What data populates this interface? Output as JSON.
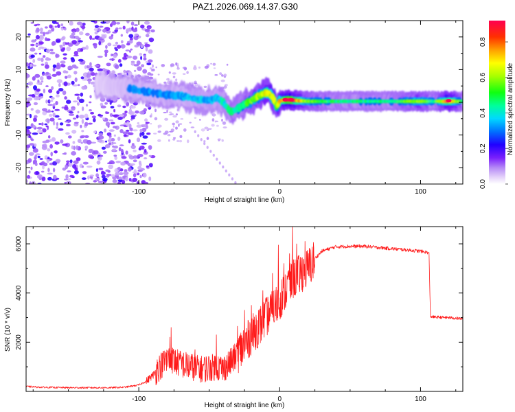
{
  "title": "PAZ1.2026.069.14.37.G30",
  "chart_data": [
    {
      "type": "heatmap",
      "name": "spectrogram",
      "xlabel": "Height of straight line (km)",
      "ylabel": "Frequency (Hz)",
      "xlim": [
        -180,
        130
      ],
      "ylim": [
        -25,
        25
      ],
      "xticks": [
        -100,
        0,
        100
      ],
      "yticks": [
        -20,
        -10,
        0,
        10,
        20
      ],
      "colorbar": {
        "label": "Normalized spectral amplitude",
        "range": [
          0,
          0.92
        ],
        "ticks": [
          0.0,
          0.2,
          0.4,
          0.6,
          0.8
        ],
        "colors": [
          "#ffffff",
          "#d8b8f8",
          "#9a50f8",
          "#7000ff",
          "#0000ff",
          "#0098ff",
          "#00f0ff",
          "#00ff80",
          "#30ff00",
          "#b8ff00",
          "#ffff00",
          "#ffb000",
          "#ff4000",
          "#ff0050"
        ]
      },
      "ridge": {
        "x": [
          -130,
          -120,
          -110,
          -100,
          -90,
          -80,
          -70,
          -60,
          -50,
          -45,
          -40,
          -35,
          -30,
          -25,
          -20,
          -15,
          -12,
          -8,
          -5,
          -2,
          0,
          5,
          10,
          20,
          40,
          60,
          80,
          100,
          110,
          120,
          130
        ],
        "y": [
          5.5,
          5.0,
          4.3,
          3.6,
          3.0,
          2.2,
          2.0,
          1.0,
          0.5,
          1.5,
          0,
          -3,
          -2,
          -0.5,
          0.5,
          2,
          2.5,
          3,
          1.5,
          -1.5,
          0.5,
          0.8,
          0.6,
          0.3,
          0.3,
          0.3,
          0.3,
          0.3,
          0.3,
          0.3,
          0.3
        ],
        "amplitude": [
          0.18,
          0.22,
          0.25,
          0.3,
          0.3,
          0.32,
          0.33,
          0.35,
          0.35,
          0.35,
          0.4,
          0.45,
          0.45,
          0.5,
          0.55,
          0.6,
          0.65,
          0.7,
          0.65,
          0.6,
          0.7,
          0.9,
          0.85,
          0.55,
          0.45,
          0.45,
          0.45,
          0.6,
          0.45,
          0.85,
          0.45
        ]
      }
    },
    {
      "type": "line",
      "name": "snr",
      "xlabel": "Height of straight line (km)",
      "ylabel": "SNR (10 * v/v)",
      "xlim": [
        -180,
        130
      ],
      "ylim": [
        0,
        6700
      ],
      "xticks": [
        -100,
        0,
        100
      ],
      "yticks": [
        2000,
        4000,
        6000
      ],
      "color": "#ff1a1a",
      "series": [
        {
          "name": "SNR",
          "x": [
            -180,
            -170,
            -160,
            -150,
            -140,
            -130,
            -120,
            -110,
            -100,
            -95,
            -90,
            -85,
            -80,
            -75,
            -70,
            -65,
            -60,
            -55,
            -50,
            -45,
            -40,
            -35,
            -30,
            -25,
            -20,
            -15,
            -10,
            -5,
            0,
            5,
            10,
            15,
            20,
            25,
            30,
            35,
            40,
            50,
            60,
            70,
            80,
            90,
            100,
            105,
            106,
            107,
            110,
            120,
            130
          ],
          "values": [
            200,
            170,
            160,
            150,
            150,
            150,
            150,
            170,
            260,
            400,
            650,
            1000,
            1300,
            1250,
            1100,
            1050,
            950,
            900,
            950,
            1000,
            900,
            1200,
            1500,
            1900,
            2300,
            2600,
            3000,
            3300,
            3700,
            4200,
            4600,
            4800,
            5000,
            5400,
            5700,
            5800,
            5880,
            5900,
            5900,
            5850,
            5800,
            5750,
            5700,
            5650,
            5600,
            3050,
            3020,
            3000,
            2950
          ],
          "spikes": [
            [
              -78,
              2200
            ],
            [
              -77,
              2600
            ],
            [
              -60,
              1700
            ],
            [
              -45,
              2300
            ],
            [
              -30,
              2650
            ],
            [
              -25,
              3300
            ],
            [
              -20,
              3500
            ],
            [
              -15,
              3300
            ],
            [
              -12,
              4100
            ],
            [
              -5,
              4800
            ],
            [
              -1,
              5950
            ],
            [
              3,
              5200
            ],
            [
              7,
              5600
            ],
            [
              9,
              6700
            ],
            [
              12,
              6000
            ],
            [
              18,
              6100
            ]
          ]
        }
      ]
    }
  ]
}
